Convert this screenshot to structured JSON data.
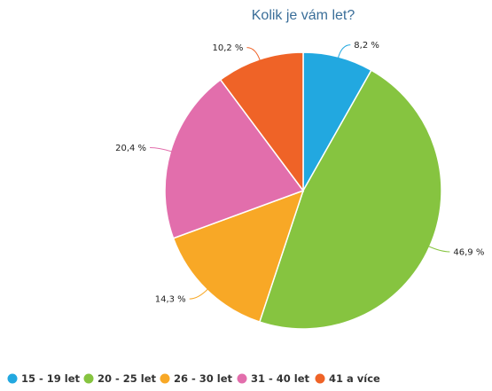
{
  "chart_data": {
    "type": "pie",
    "title": "Kolik je vám let?",
    "legend_position": "bottom-left",
    "slices": [
      {
        "label": "15 - 19 let",
        "value": 8.2,
        "value_label": "8,2 %",
        "color": "#22a8e0"
      },
      {
        "label": "20 - 25 let",
        "value": 46.9,
        "value_label": "46,9 %",
        "color": "#86c440"
      },
      {
        "label": "26 - 30 let",
        "value": 14.3,
        "value_label": "14,3 %",
        "color": "#f8a826"
      },
      {
        "label": "31 - 40 let",
        "value": 20.4,
        "value_label": "20,4 %",
        "color": "#e26eac"
      },
      {
        "label": "41 a více",
        "value": 10.2,
        "value_label": "10,2 %",
        "color": "#ef6327"
      }
    ]
  }
}
